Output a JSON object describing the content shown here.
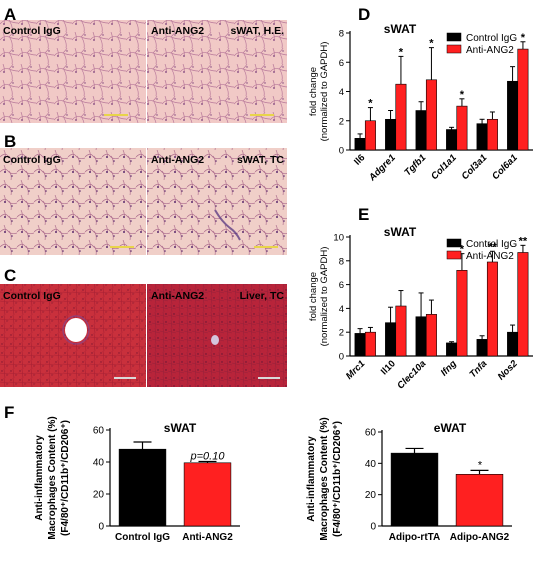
{
  "colors": {
    "control": "#000000",
    "treatment": "#ff2020",
    "he_bg": "#f1c9c6",
    "he_line": "#b8789a",
    "tc_bg": "#f0cfc8",
    "tc_line": "#b07090",
    "liver_bg": "#c9303c",
    "liver_bg2": "#b8243a",
    "scalebar": "#e8d44a",
    "scalebar_liver": "#d9d9d9"
  },
  "panels": {
    "A": {
      "letter": "A",
      "left_label": "Control IgG",
      "right_label": "Anti-ANG2",
      "right_tag": "sWAT, H.E."
    },
    "B": {
      "letter": "B",
      "left_label": "Control IgG",
      "right_label": "Anti-ANG2",
      "right_tag": "sWAT, TC"
    },
    "C": {
      "letter": "C",
      "left_label": "Control IgG",
      "right_label": "Anti-ANG2",
      "right_tag": "Liver, TC"
    }
  },
  "chart_data": [
    {
      "id": "D",
      "letter": "D",
      "type": "bar",
      "title": "sWAT",
      "ylabel_lines": [
        "fold change",
        "(normalized to GAPDH)"
      ],
      "ylim": [
        0,
        8
      ],
      "yticks": [
        0,
        2,
        4,
        6,
        8
      ],
      "categories": [
        "Il6",
        "Adgre1",
        "Tgfb1",
        "Col1a1",
        "Col3a1",
        "Col6a1"
      ],
      "series": [
        {
          "name": "Control IgG",
          "values": [
            0.8,
            2.1,
            2.7,
            1.4,
            1.8,
            4.7
          ],
          "errors": [
            0.3,
            0.6,
            0.6,
            0.15,
            0.3,
            1.0
          ]
        },
        {
          "name": "Anti-ANG2",
          "values": [
            2.0,
            4.5,
            4.8,
            3.0,
            2.1,
            6.9
          ],
          "errors": [
            0.9,
            1.9,
            2.2,
            0.5,
            0.5,
            0.5
          ]
        }
      ],
      "significance": [
        "*",
        "*",
        "*",
        "*",
        "",
        "*"
      ],
      "legend": "top-right"
    },
    {
      "id": "E",
      "letter": "E",
      "type": "bar",
      "title": "sWAT",
      "ylabel_lines": [
        "fold change",
        "(normalized to GAPDH)"
      ],
      "ylim": [
        0,
        10
      ],
      "yticks": [
        0,
        2,
        4,
        6,
        8,
        10
      ],
      "categories": [
        "Mrc1",
        "Il10",
        "Clec10a",
        "Ifng",
        "Tnfa",
        "Nos2"
      ],
      "series": [
        {
          "name": "Control IgG",
          "values": [
            1.9,
            2.8,
            3.3,
            1.1,
            1.4,
            2.0
          ],
          "errors": [
            0.4,
            1.3,
            2.0,
            0.1,
            0.3,
            0.6
          ]
        },
        {
          "name": "Anti-ANG2",
          "values": [
            2.0,
            4.2,
            3.5,
            7.2,
            7.9,
            8.7
          ],
          "errors": [
            0.4,
            1.3,
            1.2,
            1.4,
            0.9,
            0.6
          ]
        }
      ],
      "significance": [
        "",
        "",
        "",
        "*",
        "**",
        "**"
      ],
      "legend": "top-right"
    },
    {
      "id": "F1",
      "letter": "F",
      "type": "bar",
      "title": "sWAT",
      "ylabel_lines": [
        "Anti-inflammatory",
        "Macrophages Content (%)",
        "(F4/80⁺/CD11b⁺/CD206⁺)"
      ],
      "ylim": [
        0,
        60
      ],
      "yticks": [
        0,
        20,
        40,
        60
      ],
      "categories": [
        "Control IgG",
        "Anti-ANG2"
      ],
      "values": [
        48,
        39.5
      ],
      "errors": [
        4.5,
        0.8
      ],
      "colors": [
        "#000000",
        "#ff2020"
      ],
      "annotation": {
        "text": "p=0.10",
        "category": 1
      }
    },
    {
      "id": "F2",
      "type": "bar",
      "title": "eWAT",
      "ylabel_lines": [
        "Anti-inflammatory",
        "Macrophages Content (%)",
        "(F4/80⁺/CD11b⁺/CD206⁺)"
      ],
      "ylim": [
        0,
        60
      ],
      "yticks": [
        0,
        20,
        40,
        60
      ],
      "categories": [
        "Adipo-rtTA",
        "Adipo-ANG2"
      ],
      "values": [
        46.5,
        33
      ],
      "errors": [
        3,
        2.5
      ],
      "colors": [
        "#000000",
        "#ff2020"
      ],
      "annotation": {
        "text": "*",
        "category": 1
      }
    }
  ]
}
